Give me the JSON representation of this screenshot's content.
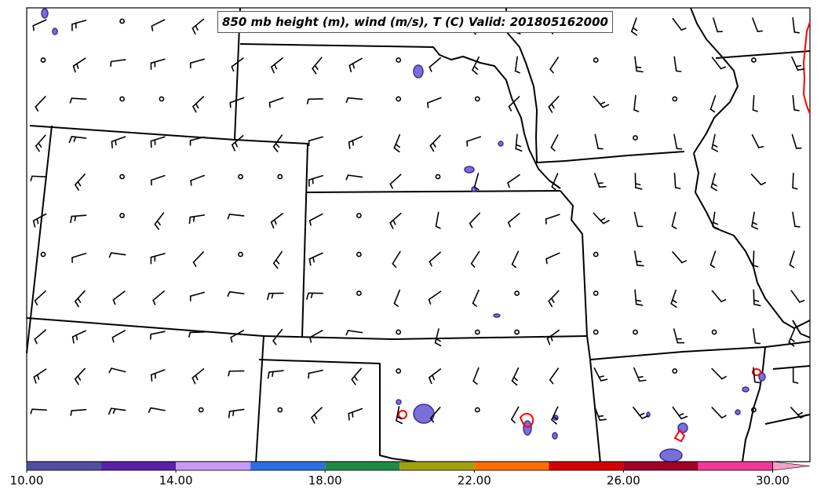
{
  "title": "850 mb height (m), wind (m/s), T (C) Valid: 201805162000",
  "colorbar": {
    "tick_labels": [
      "10.00",
      "14.00",
      "18.00",
      "22.00",
      "26.00",
      "30.00"
    ],
    "range": [
      10,
      31
    ],
    "bin_size": 2,
    "colors": [
      "#4e4fa0",
      "#5c1fa8",
      "#c79af4",
      "#2f6fe0",
      "#1f8a45",
      "#9ea010",
      "#ff6f00",
      "#d40000",
      "#a0002a",
      "#f0389a",
      "#f7a0cc"
    ],
    "extend": "max"
  },
  "colors": {
    "state_borders": "#000000",
    "temperature_contour": "#ff0000",
    "wind_barbs": "#000000"
  },
  "wind_field": {
    "rows": 11,
    "columns": 20
  }
}
